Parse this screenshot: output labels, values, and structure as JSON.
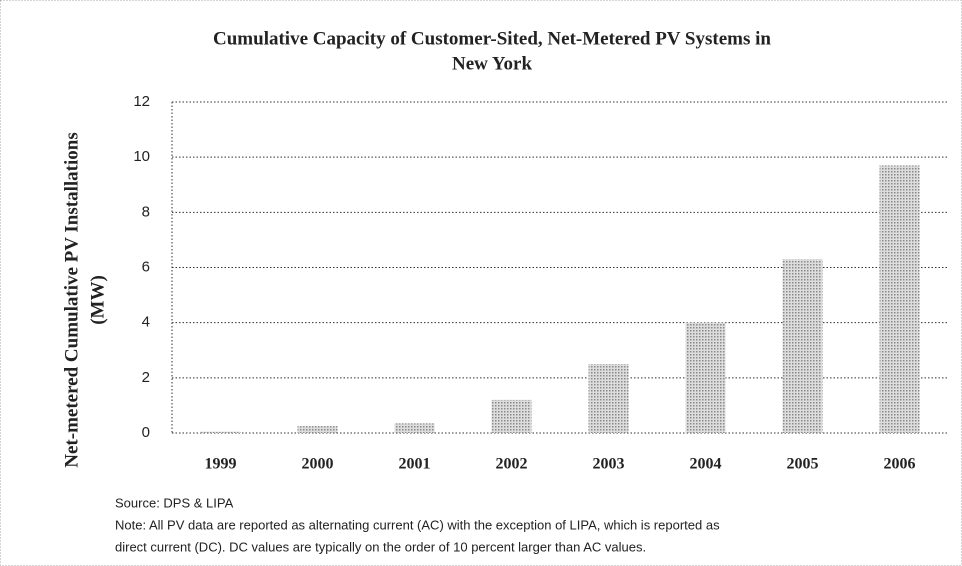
{
  "chart_data": {
    "type": "bar",
    "title": [
      "Cumulative Capacity of Customer-Sited, Net-Metered PV Systems in",
      "New York"
    ],
    "y_label": [
      "Net-metered Cumulative PV Installations",
      "(MW)"
    ],
    "categories": [
      "1999",
      "2000",
      "2001",
      "2002",
      "2003",
      "2004",
      "2005",
      "2006"
    ],
    "values": [
      0.05,
      0.25,
      0.35,
      1.2,
      2.5,
      4.0,
      6.3,
      9.7
    ],
    "color": "#8a8a8a",
    "ylim": [
      0,
      12
    ],
    "yticks": [
      0,
      2,
      4,
      6,
      8,
      10,
      12
    ],
    "grid": true,
    "source": "Source: DPS & LIPA",
    "note": [
      "Note: All PV data are reported as alternating current (AC) with the exception of LIPA, which is reported as",
      "direct current (DC).  DC values are typically on the order of 10 percent larger than AC values."
    ]
  }
}
